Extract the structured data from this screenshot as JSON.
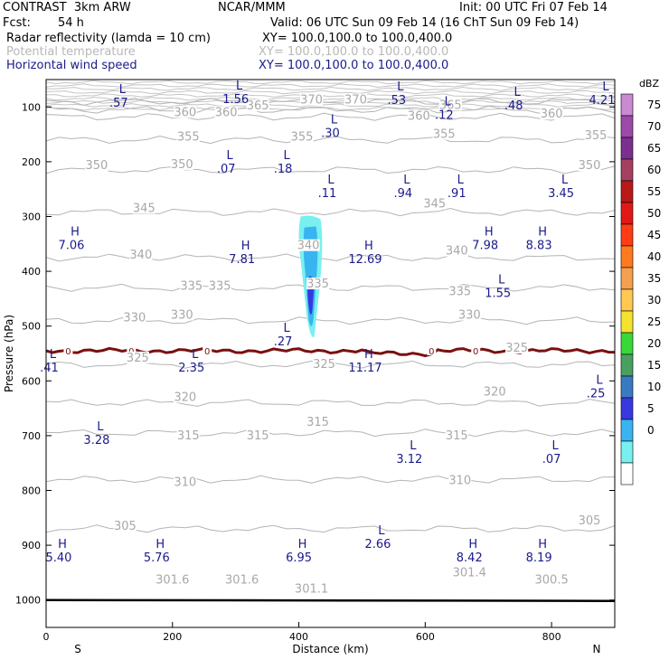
{
  "header": {
    "model": "CONTRAST  3km ARW",
    "org": "NCAR/MMM",
    "init": "Init: 00 UTC Fri 07 Feb 14",
    "fcst_label": "Fcst:",
    "fcst_value": "54 h",
    "valid": "Valid: 06 UTC Sun 09 Feb 14 (16 ChT Sun 09 Feb 14)",
    "fields": [
      {
        "name": "Radar reflectivity (lamda = 10 cm)",
        "xy": "XY= 100.0,100.0 to 100.0,400.0"
      },
      {
        "name": "Potential temperature",
        "xy": "XY= 100.0,100.0 to 100.0,400.0"
      },
      {
        "name": "Horizontal wind speed",
        "xy": "XY= 100.0,100.0 to 100.0,400.0"
      }
    ]
  },
  "chart_data": {
    "type": "contour cross-section",
    "ylabel": "Pressure (hPa)",
    "xlabel": "Distance (km)",
    "xlim": [
      0,
      900
    ],
    "ylim": [
      1050,
      50
    ],
    "x_ticks": [
      0,
      200,
      400,
      600,
      800
    ],
    "y_ticks": [
      100,
      200,
      300,
      400,
      500,
      600,
      700,
      800,
      900,
      1000
    ],
    "x_end_labels": {
      "left": "S",
      "right": "N"
    },
    "colorbar": {
      "title": "dBZ",
      "levels": [
        75,
        70,
        65,
        60,
        55,
        50,
        45,
        40,
        35,
        30,
        25,
        20,
        15,
        10,
        5,
        0
      ],
      "colors": [
        "#c88ad0",
        "#9b4aa8",
        "#7b2f8f",
        "#a54060",
        "#b81818",
        "#e01818",
        "#ff3c14",
        "#ff7a1e",
        "#f5a050",
        "#ffc850",
        "#f5e22e",
        "#38d838",
        "#4aa060",
        "#3a7ac0",
        "#3838e0",
        "#38b4f0",
        "#78f0f0",
        "#ffffff"
      ]
    },
    "theta_contours": [
      {
        "value": 300,
        "p": 1000
      },
      {
        "value": 305,
        "p": 870
      },
      {
        "value": 310,
        "p": 780
      },
      {
        "value": 315,
        "p": 695
      },
      {
        "value": 320,
        "p": 640
      },
      {
        "value": 325,
        "p": 570
      },
      {
        "value": 330,
        "p": 490
      },
      {
        "value": 335,
        "p": 430
      },
      {
        "value": 340,
        "p": 375
      },
      {
        "value": 345,
        "p": 292
      },
      {
        "value": 350,
        "p": 215
      },
      {
        "value": 355,
        "p": 160
      },
      {
        "value": 360,
        "p": 118
      },
      {
        "value": 365,
        "p": 105
      },
      {
        "value": 370,
        "p": 90
      }
    ],
    "theta_labels": [
      {
        "text": "370",
        "x": 420,
        "p": 92
      },
      {
        "text": "370",
        "x": 490,
        "p": 92
      },
      {
        "text": "365",
        "x": 335,
        "p": 103
      },
      {
        "text": "365",
        "x": 640,
        "p": 102
      },
      {
        "text": "360",
        "x": 220,
        "p": 115
      },
      {
        "text": "360",
        "x": 285,
        "p": 115
      },
      {
        "text": "360",
        "x": 590,
        "p": 122
      },
      {
        "text": "360",
        "x": 800,
        "p": 118
      },
      {
        "text": "355",
        "x": 225,
        "p": 160
      },
      {
        "text": "355",
        "x": 405,
        "p": 160
      },
      {
        "text": "355",
        "x": 630,
        "p": 155
      },
      {
        "text": "355",
        "x": 870,
        "p": 157
      },
      {
        "text": "350",
        "x": 80,
        "p": 212
      },
      {
        "text": "350",
        "x": 215,
        "p": 210
      },
      {
        "text": "350",
        "x": 860,
        "p": 212
      },
      {
        "text": "345",
        "x": 155,
        "p": 290
      },
      {
        "text": "345",
        "x": 615,
        "p": 282
      },
      {
        "text": "340",
        "x": 150,
        "p": 375
      },
      {
        "text": "340",
        "x": 415,
        "p": 358
      },
      {
        "text": "340",
        "x": 650,
        "p": 368
      },
      {
        "text": "335",
        "x": 230,
        "p": 432
      },
      {
        "text": "335",
        "x": 275,
        "p": 432
      },
      {
        "text": "335",
        "x": 430,
        "p": 428
      },
      {
        "text": "335",
        "x": 655,
        "p": 442
      },
      {
        "text": "330",
        "x": 140,
        "p": 490
      },
      {
        "text": "330",
        "x": 215,
        "p": 485
      },
      {
        "text": "330",
        "x": 670,
        "p": 485
      },
      {
        "text": "325",
        "x": 145,
        "p": 563
      },
      {
        "text": "325",
        "x": 440,
        "p": 575
      },
      {
        "text": "325",
        "x": 745,
        "p": 545
      },
      {
        "text": "320",
        "x": 220,
        "p": 635
      },
      {
        "text": "320",
        "x": 710,
        "p": 625
      },
      {
        "text": "315",
        "x": 225,
        "p": 705
      },
      {
        "text": "315",
        "x": 335,
        "p": 705
      },
      {
        "text": "315",
        "x": 430,
        "p": 680
      },
      {
        "text": "315",
        "x": 650,
        "p": 705
      },
      {
        "text": "310",
        "x": 220,
        "p": 790
      },
      {
        "text": "310",
        "x": 655,
        "p": 787
      },
      {
        "text": "305",
        "x": 125,
        "p": 870
      },
      {
        "text": "305",
        "x": 860,
        "p": 860
      },
      {
        "text": "301.6",
        "x": 200,
        "p": 968
      },
      {
        "text": "301.6",
        "x": 310,
        "p": 968
      },
      {
        "text": "301.1",
        "x": 420,
        "p": 985
      },
      {
        "text": "301.4",
        "x": 670,
        "p": 955
      },
      {
        "text": "300.5",
        "x": 800,
        "p": 968
      }
    ],
    "wind_labels": [
      {
        "mark": "L",
        "value": ".57",
        "x": 115,
        "p": 75
      },
      {
        "mark": "L",
        "value": "1.56",
        "x": 300,
        "p": 68
      },
      {
        "mark": "L",
        "value": ".53",
        "x": 555,
        "p": 70
      },
      {
        "mark": "L",
        "value": ".12",
        "x": 630,
        "p": 97
      },
      {
        "mark": "L",
        "value": ".48",
        "x": 740,
        "p": 80
      },
      {
        "mark": "L",
        "value": "4.21",
        "x": 880,
        "p": 70
      },
      {
        "mark": "L",
        "value": ".30",
        "x": 450,
        "p": 130
      },
      {
        "mark": "L",
        "value": ".07",
        "x": 285,
        "p": 195
      },
      {
        "mark": "L",
        "value": ".18",
        "x": 375,
        "p": 195
      },
      {
        "mark": "L",
        "value": ".11",
        "x": 445,
        "p": 240
      },
      {
        "mark": "L",
        "value": ".94",
        "x": 565,
        "p": 240
      },
      {
        "mark": "L",
        "value": ".91",
        "x": 650,
        "p": 240
      },
      {
        "mark": "L",
        "value": "3.45",
        "x": 815,
        "p": 240
      },
      {
        "mark": "H",
        "value": "7.06",
        "x": 40,
        "p": 335
      },
      {
        "mark": "H",
        "value": "7.81",
        "x": 310,
        "p": 360
      },
      {
        "mark": "H",
        "value": "12.69",
        "x": 505,
        "p": 360
      },
      {
        "mark": "H",
        "value": "7.98",
        "x": 695,
        "p": 335
      },
      {
        "mark": "H",
        "value": "8.83",
        "x": 780,
        "p": 335
      },
      {
        "mark": "L",
        "value": "1.55",
        "x": 715,
        "p": 422
      },
      {
        "mark": "L",
        "value": ".27",
        "x": 375,
        "p": 510
      },
      {
        "mark": "L",
        "value": ".41",
        "x": 5,
        "p": 558
      },
      {
        "mark": "L",
        "value": "2.35",
        "x": 230,
        "p": 558
      },
      {
        "mark": "H",
        "value": "11.17",
        "x": 505,
        "p": 558
      },
      {
        "mark": "L",
        "value": ".25",
        "x": 870,
        "p": 605
      },
      {
        "mark": "L",
        "value": "3.28",
        "x": 80,
        "p": 690
      },
      {
        "mark": "L",
        "value": "3.12",
        "x": 575,
        "p": 725
      },
      {
        "mark": "L",
        "value": ".07",
        "x": 800,
        "p": 725
      },
      {
        "mark": "L",
        "value": "2.66",
        "x": 525,
        "p": 880
      },
      {
        "mark": "H",
        "value": "5.40",
        "x": 20,
        "p": 905
      },
      {
        "mark": "H",
        "value": "5.76",
        "x": 175,
        "p": 905
      },
      {
        "mark": "H",
        "value": "6.95",
        "x": 400,
        "p": 905
      },
      {
        "mark": "H",
        "value": "8.42",
        "x": 670,
        "p": 905
      },
      {
        "mark": "H",
        "value": "8.19",
        "x": 780,
        "p": 905
      }
    ],
    "zero_isotherm": {
      "label": "0",
      "p": 545,
      "label_x": [
        35,
        135,
        255,
        610,
        680
      ]
    },
    "surface_p": 1000,
    "reflectivity_max_dBZ": 17,
    "reflectivity_x": 420
  }
}
